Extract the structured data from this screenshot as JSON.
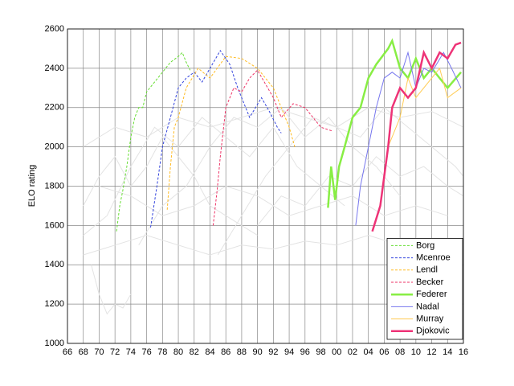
{
  "chart_data": {
    "type": "line",
    "ylabel": "ELO rating",
    "xlim": [
      1966,
      2016
    ],
    "ylim": [
      1000,
      2600
    ],
    "xticks": [
      {
        "value": 1966,
        "label": "66"
      },
      {
        "value": 1968,
        "label": "68"
      },
      {
        "value": 1970,
        "label": "70"
      },
      {
        "value": 1972,
        "label": "72"
      },
      {
        "value": 1974,
        "label": "74"
      },
      {
        "value": 1976,
        "label": "76"
      },
      {
        "value": 1978,
        "label": "78"
      },
      {
        "value": 1980,
        "label": "80"
      },
      {
        "value": 1982,
        "label": "82"
      },
      {
        "value": 1984,
        "label": "84"
      },
      {
        "value": 1986,
        "label": "86"
      },
      {
        "value": 1988,
        "label": "88"
      },
      {
        "value": 1990,
        "label": "90"
      },
      {
        "value": 1992,
        "label": "92"
      },
      {
        "value": 1994,
        "label": "94"
      },
      {
        "value": 1996,
        "label": "96"
      },
      {
        "value": 1998,
        "label": "98"
      },
      {
        "value": 2000,
        "label": "00"
      },
      {
        "value": 2002,
        "label": "02"
      },
      {
        "value": 2004,
        "label": "04"
      },
      {
        "value": 2006,
        "label": "06"
      },
      {
        "value": 2008,
        "label": "08"
      },
      {
        "value": 2010,
        "label": "10"
      },
      {
        "value": 2012,
        "label": "12"
      },
      {
        "value": 2014,
        "label": "14"
      },
      {
        "value": 2016,
        "label": "16"
      }
    ],
    "yticks": [
      1000,
      1200,
      1400,
      1600,
      1800,
      2000,
      2200,
      2400,
      2600
    ],
    "grid": true,
    "legend": "lower right",
    "series": [
      {
        "color": "#e3e3e3",
        "width": 1,
        "x": [
          1968,
          1970,
          1972,
          1974,
          1976,
          1978,
          1980,
          1982,
          1984,
          1986,
          1988,
          1990
        ],
        "values": [
          1700,
          1850,
          1950,
          1800,
          1900,
          2050,
          1950,
          1850,
          1700,
          1650,
          1600,
          1550
        ]
      },
      {
        "color": "#e3e3e3",
        "width": 1,
        "x": [
          1968,
          1971,
          1974,
          1977,
          1980,
          1983,
          1986,
          1989,
          1992,
          1995,
          1998,
          2001
        ],
        "values": [
          1550,
          1650,
          1900,
          2100,
          2000,
          2150,
          2050,
          1950,
          2100,
          1900,
          1800,
          1700
        ]
      },
      {
        "color": "#e3e3e3",
        "width": 1,
        "x": [
          1975,
          1978,
          1981,
          1984,
          1987,
          1990,
          1993,
          1996,
          1999,
          2002,
          2005,
          2008
        ],
        "values": [
          1500,
          1700,
          1800,
          2000,
          2150,
          2100,
          2200,
          2050,
          2150,
          2000,
          1900,
          1750
        ]
      },
      {
        "color": "#e3e3e3",
        "width": 1,
        "x": [
          1985,
          1988,
          1991,
          1994,
          1997,
          2000,
          2003,
          2006,
          2009,
          2012,
          2015,
          2016
        ],
        "values": [
          1450,
          1650,
          1850,
          2000,
          2150,
          2100,
          2050,
          2200,
          2100,
          2000,
          1900,
          1850
        ]
      },
      {
        "color": "#e3e3e3",
        "width": 1,
        "x": [
          1968,
          1972,
          1976,
          1980,
          1984,
          1988,
          1992,
          1996,
          2000,
          2004,
          2008,
          2012,
          2016
        ],
        "values": [
          1450,
          1500,
          1550,
          1500,
          1450,
          1500,
          1480,
          1520,
          1500,
          1550,
          1500,
          1480,
          1500
        ]
      },
      {
        "color": "#e3e3e3",
        "width": 1,
        "x": [
          1968,
          1972,
          1976,
          1980,
          1984,
          1988,
          1992,
          1996,
          2000,
          2004,
          2008,
          2012,
          2016
        ],
        "values": [
          2000,
          2100,
          2050,
          2150,
          2100,
          2150,
          2200,
          2150,
          2100,
          2200,
          2150,
          2180,
          2100
        ]
      },
      {
        "color": "#e3e3e3",
        "width": 1,
        "x": [
          1969,
          1970,
          1971,
          1972,
          1973,
          1974
        ],
        "values": [
          1400,
          1250,
          1150,
          1200,
          1180,
          1250
        ]
      },
      {
        "color": "#e3e3e3",
        "width": 1,
        "x": [
          1990,
          1993,
          1996,
          1999,
          2002,
          2005,
          2008,
          2011,
          2014,
          2016
        ],
        "values": [
          1600,
          1750,
          1700,
          1850,
          1800,
          1950,
          1850,
          1900,
          1800,
          1750
        ]
      },
      {
        "color": "#e3e3e3",
        "width": 1,
        "x": [
          1970,
          1974,
          1978,
          1982,
          1986,
          1990,
          1994,
          1998,
          2002,
          2006,
          2010,
          2014
        ],
        "values": [
          1800,
          1750,
          1650,
          1700,
          1800,
          1750,
          1650,
          1700,
          1750,
          1650,
          1700,
          1650
        ]
      },
      {
        "name": "Borg",
        "color": "#66dd33",
        "width": 1,
        "dash": true,
        "x": [
          1972.2,
          1972.6,
          1973,
          1973.5,
          1974,
          1974.5,
          1975,
          1975.5,
          1976,
          1977,
          1978,
          1979,
          1980,
          1980.5,
          1981,
          1981.5
        ],
        "values": [
          1570,
          1700,
          1780,
          1900,
          2050,
          2150,
          2200,
          2200,
          2280,
          2330,
          2380,
          2430,
          2460,
          2480,
          2430,
          2390
        ]
      },
      {
        "name": "Mcenroe",
        "color": "#3344dd",
        "width": 1,
        "dash": true,
        "x": [
          1976.5,
          1977.3,
          1978,
          1979,
          1980,
          1981,
          1982,
          1983,
          1984,
          1985.3,
          1986.5,
          1987.5,
          1989,
          1990.5,
          1991.5,
          1992.5,
          1993
        ],
        "values": [
          1590,
          1800,
          2000,
          2150,
          2300,
          2350,
          2380,
          2330,
          2400,
          2490,
          2420,
          2300,
          2150,
          2250,
          2180,
          2100,
          2070
        ]
      },
      {
        "name": "Lendl",
        "color": "#ffbb22",
        "width": 1,
        "dash": true,
        "x": [
          1978.6,
          1979,
          1979.5,
          1980,
          1981,
          1982.5,
          1984,
          1986,
          1988,
          1990,
          1992,
          1993,
          1994,
          1994.7
        ],
        "values": [
          1680,
          1900,
          2100,
          2150,
          2300,
          2400,
          2350,
          2460,
          2450,
          2400,
          2300,
          2200,
          2100,
          2000
        ]
      },
      {
        "name": "Becker",
        "color": "#ee3366",
        "width": 1,
        "dash": true,
        "x": [
          1984.4,
          1984.9,
          1985.3,
          1986,
          1987,
          1988,
          1989,
          1990,
          1991,
          1992,
          1993,
          1994.5,
          1996,
          1998,
          1999.5
        ],
        "values": [
          1600,
          1780,
          1950,
          2200,
          2300,
          2280,
          2350,
          2390,
          2320,
          2250,
          2150,
          2220,
          2200,
          2100,
          2080
        ]
      },
      {
        "name": "Federer",
        "color": "#88ee44",
        "width": 2.5,
        "x": [
          1998.9,
          1999.3,
          1999.8,
          2000.3,
          2001,
          2002,
          2003,
          2004,
          2005,
          2006.5,
          2007,
          2008,
          2009,
          2010,
          2011,
          2012,
          2013,
          2014,
          2015.7
        ],
        "values": [
          1690,
          1900,
          1730,
          1900,
          2000,
          2150,
          2200,
          2350,
          2420,
          2500,
          2540,
          2400,
          2350,
          2450,
          2350,
          2400,
          2350,
          2300,
          2380
        ]
      },
      {
        "name": "Nadal",
        "color": "#7777ee",
        "width": 1,
        "x": [
          2002.4,
          2003,
          2004,
          2005,
          2006,
          2007,
          2008,
          2009,
          2010,
          2011,
          2012,
          2013.5,
          2014.5,
          2015.7
        ],
        "values": [
          1600,
          1800,
          2000,
          2200,
          2350,
          2380,
          2350,
          2480,
          2300,
          2400,
          2380,
          2480,
          2400,
          2300
        ]
      },
      {
        "name": "Murray",
        "color": "#ffcc55",
        "width": 1,
        "x": [
          2005.5,
          2006.5,
          2008,
          2009,
          2010,
          2012,
          2013,
          2014,
          2015.7
        ],
        "values": [
          1700,
          2000,
          2150,
          2350,
          2250,
          2350,
          2400,
          2250,
          2300
        ]
      },
      {
        "name": "Djokovic",
        "color": "#ee3377",
        "width": 2.5,
        "x": [
          2004.5,
          2005.5,
          2006.5,
          2007,
          2008,
          2009,
          2010,
          2011,
          2012,
          2013,
          2014,
          2015,
          2015.7
        ],
        "values": [
          1570,
          1700,
          2000,
          2200,
          2300,
          2250,
          2300,
          2480,
          2400,
          2480,
          2450,
          2520,
          2530
        ]
      }
    ]
  }
}
